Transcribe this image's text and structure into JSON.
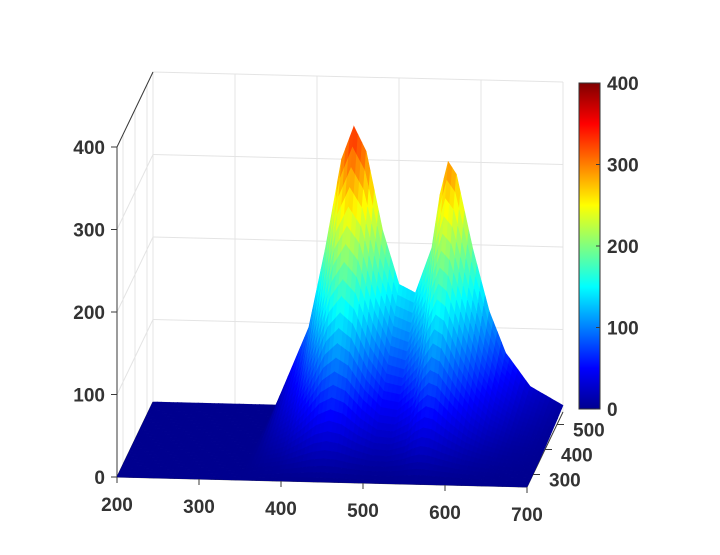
{
  "chart_data": {
    "type": "surface3d",
    "title": "",
    "xlabel": "",
    "ylabel": "",
    "zlabel": "",
    "x_ticks": [
      "200",
      "300",
      "400",
      "500",
      "600",
      "700"
    ],
    "y_ticks": [
      "300",
      "400",
      "500"
    ],
    "z_ticks": [
      "0",
      "100",
      "200",
      "300",
      "400"
    ],
    "colorbar_ticks": [
      "0",
      "100",
      "200",
      "300",
      "400"
    ],
    "xlim": [
      200,
      700
    ],
    "ylim": [
      250,
      550
    ],
    "zlim": [
      0,
      400
    ],
    "clim": [
      0,
      400
    ],
    "colormap": "jet",
    "grid": true,
    "peaks": [
      {
        "x": 445,
        "y": 500,
        "z": 340
      },
      {
        "x": 560,
        "y": 500,
        "z": 300
      }
    ],
    "surface_x": [
      200,
      250,
      300,
      350,
      390,
      410,
      430,
      445,
      460,
      480,
      500,
      520,
      540,
      550,
      560,
      570,
      590,
      610,
      630,
      660,
      700
    ],
    "surface_profile_back": [
      0,
      0,
      0,
      0,
      95,
      190,
      300,
      340,
      310,
      215,
      150,
      140,
      195,
      260,
      300,
      285,
      195,
      120,
      70,
      30,
      8
    ]
  }
}
